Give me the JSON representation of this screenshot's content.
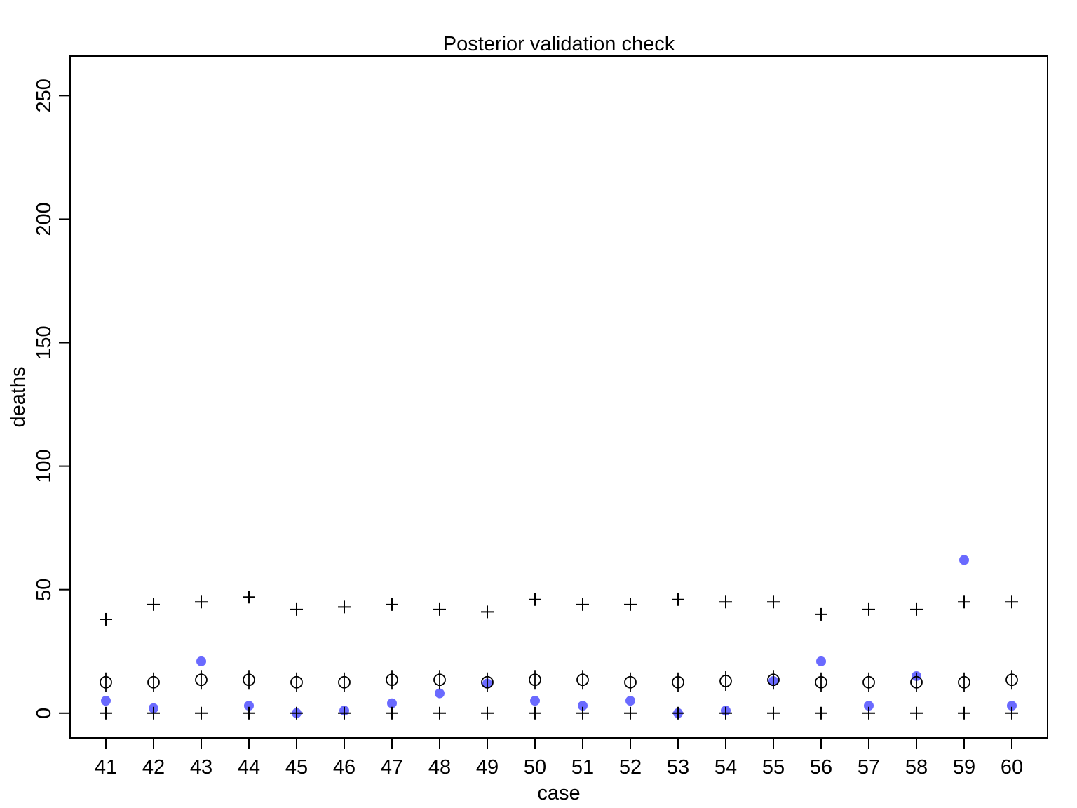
{
  "chart_data": {
    "type": "scatter",
    "title": "Posterior validation check",
    "xlabel": "case",
    "ylabel": "deaths",
    "x": [
      41,
      42,
      43,
      44,
      45,
      46,
      47,
      48,
      49,
      50,
      51,
      52,
      53,
      54,
      55,
      56,
      57,
      58,
      59,
      60
    ],
    "x_ticks": [
      "41",
      "42",
      "43",
      "44",
      "45",
      "46",
      "47",
      "48",
      "49",
      "50",
      "51",
      "52",
      "53",
      "54",
      "55",
      "56",
      "57",
      "58",
      "59",
      "60"
    ],
    "y_ticks": [
      "0",
      "50",
      "100",
      "150",
      "200",
      "250"
    ],
    "ylim": [
      -10,
      266
    ],
    "xlim": [
      40.25,
      60.75
    ],
    "grid": false,
    "series": [
      {
        "marker": "filled-circle",
        "color": "#6a6aff",
        "values": [
          5,
          2,
          21,
          3,
          0,
          1,
          4,
          8,
          12,
          5,
          3,
          5,
          0,
          1,
          13,
          21,
          3,
          15,
          62,
          3
        ]
      },
      {
        "marker": "circle-with-bar",
        "color": "#000000",
        "values": [
          12.5,
          12.5,
          13.5,
          13.5,
          12.5,
          12.5,
          13.5,
          13.5,
          12.5,
          13.5,
          13.5,
          12.5,
          12.5,
          13,
          13.5,
          12.5,
          12.5,
          12.5,
          12.5,
          13.5
        ]
      },
      {
        "marker": "plus",
        "color": "#000000",
        "values": [
          38,
          44,
          45,
          47,
          42,
          43,
          44,
          42,
          41,
          46,
          44,
          44,
          46,
          45,
          45,
          40,
          42,
          42,
          45,
          45
        ]
      },
      {
        "marker": "plus",
        "color": "#000000",
        "values": [
          0,
          0,
          0,
          0,
          0,
          0,
          0,
          0,
          0,
          0,
          0,
          0,
          0,
          0,
          0,
          0,
          0,
          0,
          0,
          0
        ]
      }
    ]
  }
}
